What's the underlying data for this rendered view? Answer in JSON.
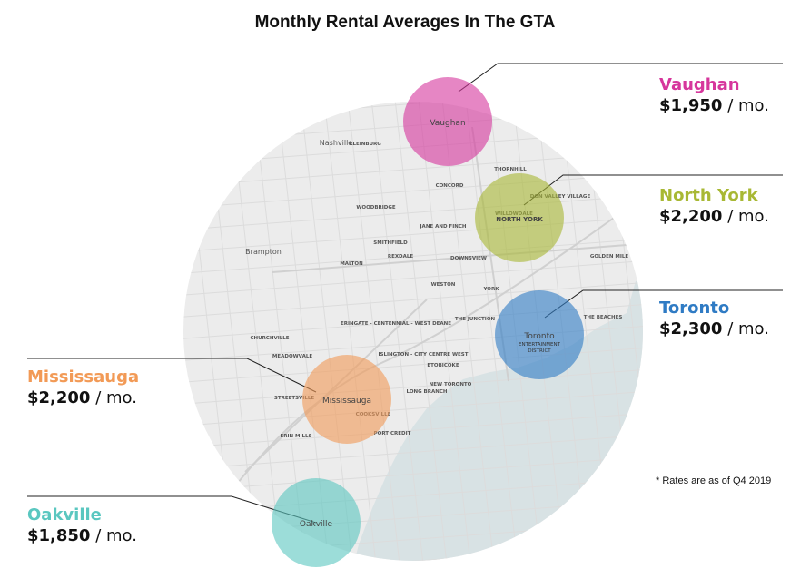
{
  "title": "Monthly Rental Averages In The GTA",
  "note": "* Rates are as of Q4 2019",
  "colors": {
    "vaughan": "#d6369c",
    "north_york": "#a8b834",
    "toronto": "#2f7bc4",
    "mississauga": "#f29a56",
    "oakville": "#5ac7c0",
    "land": "#ececec",
    "water": "#d8e2e4"
  },
  "cities": [
    {
      "key": "vaughan",
      "name": "Vaughan",
      "amount": "$1,950",
      "unit": " / mo.",
      "bubble_label": "Vaughan"
    },
    {
      "key": "north_york",
      "name": "North York",
      "amount": "$2,200",
      "unit": " / mo.",
      "bubble_label": "NORTH YORK"
    },
    {
      "key": "toronto",
      "name": "Toronto",
      "amount": "$2,300",
      "unit": " / mo.",
      "bubble_label": "Toronto",
      "bubble_sublabel": "ENTERTAINMENT\nDISTRICT"
    },
    {
      "key": "mississauga",
      "name": "Mississauga",
      "amount": "$2,200",
      "unit": " / mo.",
      "bubble_label": "Mississauga"
    },
    {
      "key": "oakville",
      "name": "Oakville",
      "amount": "$1,850",
      "unit": " / mo.",
      "bubble_label": "Oakville"
    }
  ],
  "map_places": [
    "Nashville",
    "KLEINBURG",
    "CONCORD",
    "THORNHILL",
    "WOODBRIDGE",
    "DON VALLEY VILLAGE",
    "WILLOWDALE",
    "Brampton",
    "SMITHFIELD",
    "REXDALE",
    "JANE AND FINCH",
    "DOWNSVIEW",
    "GOLDEN MILE",
    "MALTON",
    "WESTON",
    "YORK",
    "CHURCHVILLE",
    "ERINGATE - CENTENNIAL - WEST DEANE",
    "THE JUNCTION",
    "THE BEACHES",
    "MEADOWVALE",
    "ISLINGTON - CITY CENTRE WEST",
    "ETOBICOKE",
    "STREETSVILLE",
    "NEW TORONTO",
    "LONG BRANCH",
    "COOKSVILLE",
    "ERIN MILLS",
    "PORT CREDIT"
  ]
}
